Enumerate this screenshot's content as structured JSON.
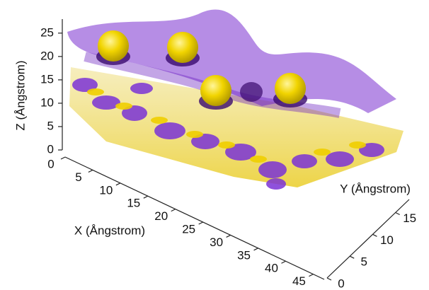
{
  "chart_data": {
    "type": "isosurface3d",
    "xlabel": "X (Ångstrom)",
    "ylabel": "Y (Ångstrom)",
    "zlabel": "Z (Ångstrom)",
    "xlim": [
      0,
      47
    ],
    "xticks": [
      0,
      5,
      10,
      15,
      20,
      25,
      30,
      35,
      40,
      45
    ],
    "ylim": [
      0,
      18
    ],
    "yticks": [
      0,
      5,
      10,
      15
    ],
    "zlim": [
      0,
      28
    ],
    "zticks": [
      0,
      5,
      10,
      15,
      20,
      25
    ]
  }
}
